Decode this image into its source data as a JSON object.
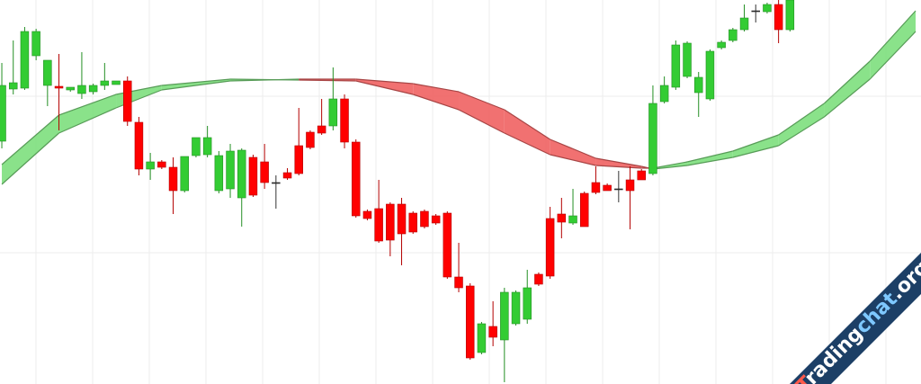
{
  "chart_data": {
    "type": "candlestick",
    "xlim": [
      -0.16,
      80.47
    ],
    "ylim": [
      0,
      427
    ],
    "up_color": "#33cc33",
    "down_color": "#ff0000",
    "candles": [
      [
        270,
        357,
        262,
        332
      ],
      [
        328,
        382,
        322,
        335
      ],
      [
        329,
        397,
        327,
        392
      ],
      [
        365,
        395,
        360,
        392
      ],
      [
        332,
        360,
        309,
        360
      ],
      [
        331,
        367,
        282,
        329
      ],
      [
        327,
        330,
        325,
        330
      ],
      [
        323,
        369,
        317,
        332
      ],
      [
        325,
        334,
        322,
        332
      ],
      [
        332,
        357,
        327,
        337
      ],
      [
        333,
        337,
        333,
        337
      ],
      [
        337,
        342,
        287,
        292
      ],
      [
        291,
        297,
        232,
        239
      ],
      [
        239,
        257,
        227,
        247
      ],
      [
        247,
        249,
        239,
        241
      ],
      [
        241,
        252,
        189,
        215
      ],
      [
        215,
        253,
        213,
        253
      ],
      [
        254,
        274,
        252,
        274
      ],
      [
        255,
        287,
        252,
        274
      ],
      [
        215,
        259,
        212,
        254
      ],
      [
        217,
        267,
        207,
        259
      ],
      [
        207,
        262,
        175,
        260
      ],
      [
        252,
        255,
        208,
        210
      ],
      [
        247,
        267,
        217,
        224
      ],
      [
        224,
        232,
        195,
        224
      ],
      [
        235,
        240,
        227,
        229
      ],
      [
        265,
        307,
        232,
        234
      ],
      [
        280,
        282,
        261,
        263
      ],
      [
        287,
        317,
        277,
        279
      ],
      [
        287,
        352,
        282,
        317
      ],
      [
        317,
        322,
        262,
        269
      ],
      [
        269,
        272,
        185,
        187
      ],
      [
        192,
        194,
        182,
        184
      ],
      [
        195,
        227,
        157,
        159
      ],
      [
        200,
        202,
        142,
        160
      ],
      [
        200,
        207,
        132,
        167
      ],
      [
        190,
        192,
        167,
        169
      ],
      [
        192,
        194,
        173,
        175
      ],
      [
        187,
        189,
        177,
        179
      ],
      [
        190,
        192,
        117,
        119
      ],
      [
        119,
        157,
        102,
        107
      ],
      [
        109,
        112,
        27,
        29
      ],
      [
        35,
        69,
        33,
        67
      ],
      [
        64,
        92,
        42,
        52
      ],
      [
        49,
        107,
        2,
        102
      ],
      [
        67,
        104,
        65,
        102
      ],
      [
        72,
        127,
        67,
        107
      ],
      [
        122,
        124,
        109,
        111
      ],
      [
        184,
        197,
        117,
        120
      ],
      [
        189,
        207,
        162,
        180
      ],
      [
        179,
        217,
        177,
        187
      ],
      [
        212,
        214,
        175,
        175
      ],
      [
        224,
        242,
        211,
        213
      ],
      [
        221,
        223,
        215,
        215
      ],
      [
        217,
        237,
        202,
        217
      ],
      [
        227,
        242,
        172,
        215
      ],
      [
        237,
        239,
        227,
        227
      ],
      [
        234,
        332,
        232,
        312
      ],
      [
        314,
        342,
        312,
        332
      ],
      [
        330,
        382,
        327,
        377
      ],
      [
        342,
        381,
        340,
        379
      ],
      [
        324,
        347,
        297,
        341
      ],
      [
        317,
        372,
        315,
        370
      ],
      [
        374,
        382,
        372,
        380
      ],
      [
        382,
        396,
        380,
        394
      ],
      [
        394,
        422,
        392,
        407
      ],
      [
        415,
        422,
        402,
        415
      ],
      [
        414,
        424,
        412,
        422
      ],
      [
        422,
        427,
        379,
        394
      ],
      [
        394,
        427,
        392,
        427
      ]
    ],
    "ribbon": {
      "x": [
        0,
        5,
        10,
        14,
        20,
        26,
        31,
        36,
        40,
        44,
        48,
        52,
        56,
        57,
        60,
        64,
        68,
        72,
        76,
        80
      ],
      "fast": [
        244,
        299,
        322,
        332,
        339,
        338,
        337,
        322,
        305,
        279,
        255,
        243,
        240,
        240,
        247,
        259,
        277,
        312,
        359,
        415
      ],
      "slow": [
        222,
        279,
        307,
        327,
        337,
        339,
        339,
        334,
        325,
        305,
        272,
        251,
        242,
        239,
        243,
        252,
        265,
        297,
        339,
        392
      ],
      "up_color": "#7ddf7d",
      "down_color": "#f06262"
    },
    "watermark": [
      "T",
      "rading",
      "chat",
      ".org"
    ]
  }
}
